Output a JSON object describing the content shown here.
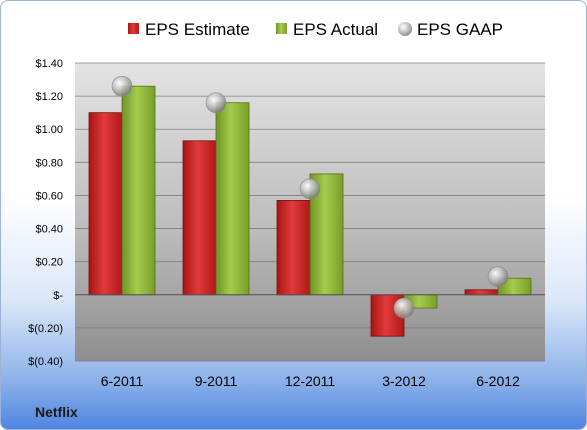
{
  "chart_data": {
    "type": "bar",
    "categories": [
      "6-2011",
      "9-2011",
      "12-2011",
      "3-2012",
      "6-2012"
    ],
    "series": [
      {
        "name": "EPS Estimate",
        "values": [
          1.1,
          0.93,
          0.57,
          -0.25,
          0.03
        ],
        "color": "#cc1f1f"
      },
      {
        "name": "EPS Actual",
        "values": [
          1.26,
          1.16,
          0.73,
          -0.08,
          0.1
        ],
        "color": "#8ab32e"
      }
    ],
    "scatter_series": {
      "name": "EPS GAAP",
      "values": [
        1.26,
        1.16,
        0.64,
        -0.08,
        0.11
      ],
      "color": "#b8b8b8"
    },
    "ylim": [
      -0.4,
      1.4
    ],
    "ytick_values": [
      -0.4,
      -0.2,
      0,
      0.2,
      0.4,
      0.6,
      0.8,
      1.0,
      1.2,
      1.4
    ],
    "ytick_labels": [
      "$(0.40)",
      "$(0.20)",
      "$-",
      "$0.20",
      "$0.40",
      "$0.60",
      "$0.80",
      "$1.00",
      "$1.20",
      "$1.40"
    ],
    "grid": true,
    "legend_position": "top",
    "footer": "Netflix"
  }
}
